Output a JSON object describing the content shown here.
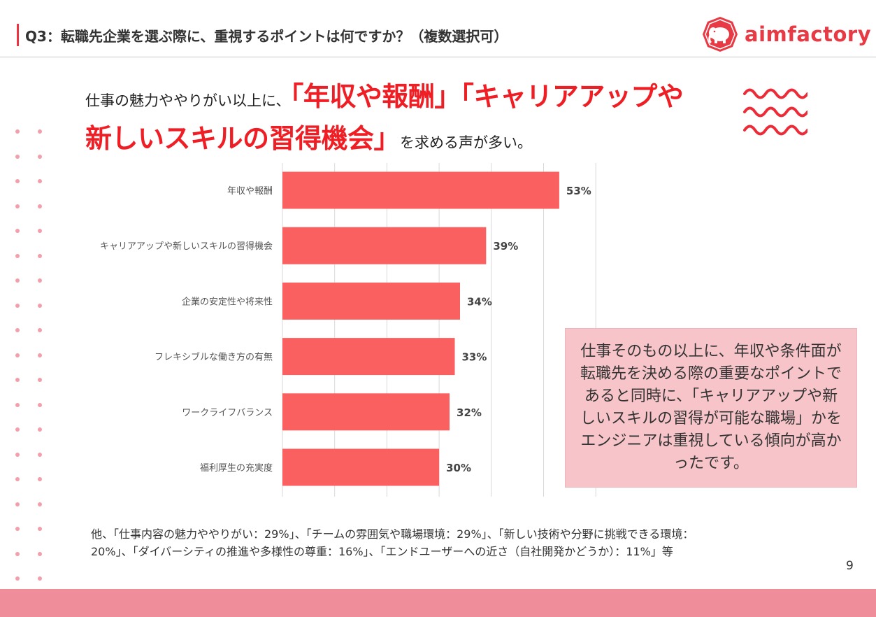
{
  "header": {
    "title": "Q3：転職先企業を選ぶ際に、重視するポイントは何ですか？（複数選択可）"
  },
  "brand": {
    "logo_text": "aimfactory",
    "color": "#e83a44"
  },
  "headline": {
    "part1": "仕事の魅力ややりがい以上に、",
    "highlight1": "「年収や報酬」「キャリアアップや",
    "highlight2": "新しいスキルの習得機会」",
    "part2": "を求める声が多い。"
  },
  "chart_data": {
    "type": "bar",
    "orientation": "horizontal",
    "categories": [
      "年収や報酬",
      "キャリアアップや新しいスキルの習得機会",
      "企業の安定性や将来性",
      "フレキシブルな働き方の有無",
      "ワークライフバランス",
      "福利厚生の充実度"
    ],
    "values": [
      53,
      39,
      34,
      33,
      32,
      30
    ],
    "value_labels": [
      "53%",
      "39%",
      "34%",
      "33%",
      "32%",
      "30%"
    ],
    "xlim": [
      0,
      60
    ],
    "grid": true,
    "bar_color": "#f9605f"
  },
  "callout": {
    "text": "仕事そのもの以上に、年収や条件面が転職先を決める際の重要なポイントであると同時に、「キャリアアップや新しいスキルの習得が可能な職場」かをエンジニアは重視している傾向が高かったです。"
  },
  "footnote": {
    "line1": "他、「仕事内容の魅力ややりがい：29%」、「チームの雰囲気や職場環境：29%」、「新しい技術や分野に挑戦できる環境：",
    "line2": "20%」、「ダイバーシティの推進や多様性の尊重：16%」、「エンドユーザーへの近さ（自社開発かどうか）：11%」等"
  },
  "page_number": "9",
  "colors": {
    "accent_red": "#ef1e24",
    "footer_pink": "#f08d9b",
    "callout_bg": "#f7c5c9",
    "dot_pink": "#f29fab"
  }
}
